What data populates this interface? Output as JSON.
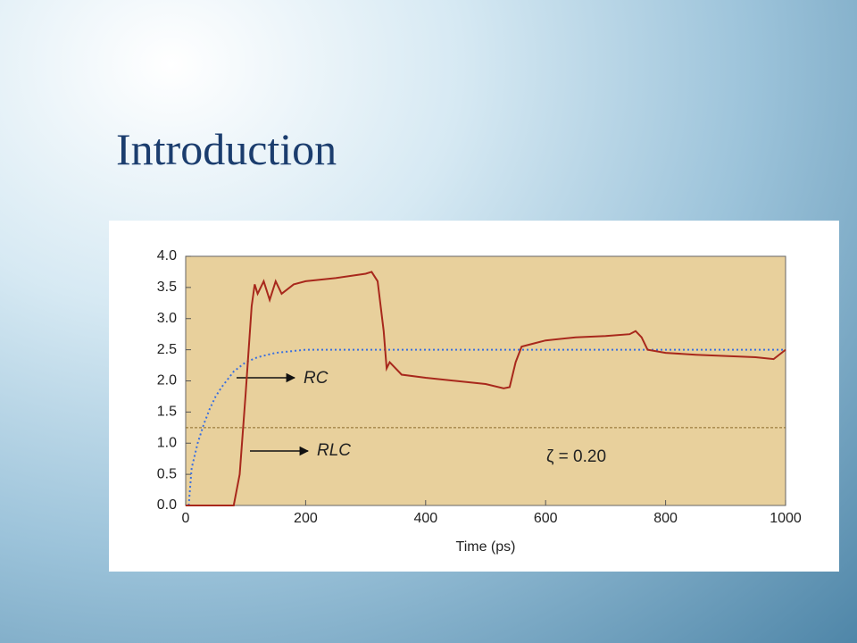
{
  "slide": {
    "title": "Introduction"
  },
  "chart_data": {
    "type": "line",
    "xlabel": "Time (ps)",
    "xlim": [
      0,
      1000
    ],
    "xticks": [
      0,
      200,
      400,
      600,
      800,
      1000
    ],
    "ylim": [
      0,
      4
    ],
    "yticks": [
      {
        "value": 0,
        "label": "0.0"
      },
      0.5,
      {
        "value": 1,
        "label": "1.0"
      },
      1.5,
      {
        "value": 2,
        "label": "2.0"
      },
      2.5,
      {
        "value": 3,
        "label": "3.0"
      },
      3.5,
      {
        "value": 4,
        "label": "4.0"
      }
    ],
    "grid": false,
    "hline": 1.25,
    "annotation": "ζ = 0.20",
    "series": [
      {
        "name": "RC",
        "color": "#3a6fe0",
        "style": "dotted",
        "x": [
          5,
          10,
          20,
          30,
          40,
          50,
          60,
          80,
          100,
          120,
          150,
          200,
          300,
          400,
          500,
          600,
          700,
          800,
          900,
          1000
        ],
        "values": [
          0,
          0.6,
          1.0,
          1.3,
          1.55,
          1.75,
          1.9,
          2.15,
          2.3,
          2.38,
          2.45,
          2.5,
          2.5,
          2.5,
          2.5,
          2.5,
          2.5,
          2.5,
          2.5,
          2.5
        ]
      },
      {
        "name": "RLC",
        "color": "#a8281c",
        "style": "solid",
        "x": [
          0,
          80,
          90,
          100,
          110,
          115,
          120,
          130,
          140,
          150,
          160,
          180,
          200,
          250,
          300,
          310,
          320,
          330,
          335,
          340,
          360,
          400,
          450,
          500,
          530,
          540,
          550,
          560,
          580,
          600,
          650,
          700,
          740,
          750,
          760,
          770,
          800,
          850,
          900,
          950,
          980,
          1000
        ],
        "values": [
          0,
          0,
          0.5,
          1.8,
          3.2,
          3.55,
          3.4,
          3.6,
          3.3,
          3.6,
          3.4,
          3.55,
          3.6,
          3.65,
          3.72,
          3.75,
          3.6,
          2.8,
          2.2,
          2.3,
          2.1,
          2.05,
          2.0,
          1.95,
          1.88,
          1.9,
          2.3,
          2.55,
          2.6,
          2.65,
          2.7,
          2.72,
          2.75,
          2.8,
          2.7,
          2.5,
          2.45,
          2.42,
          2.4,
          2.38,
          2.35,
          2.5
        ]
      }
    ]
  }
}
